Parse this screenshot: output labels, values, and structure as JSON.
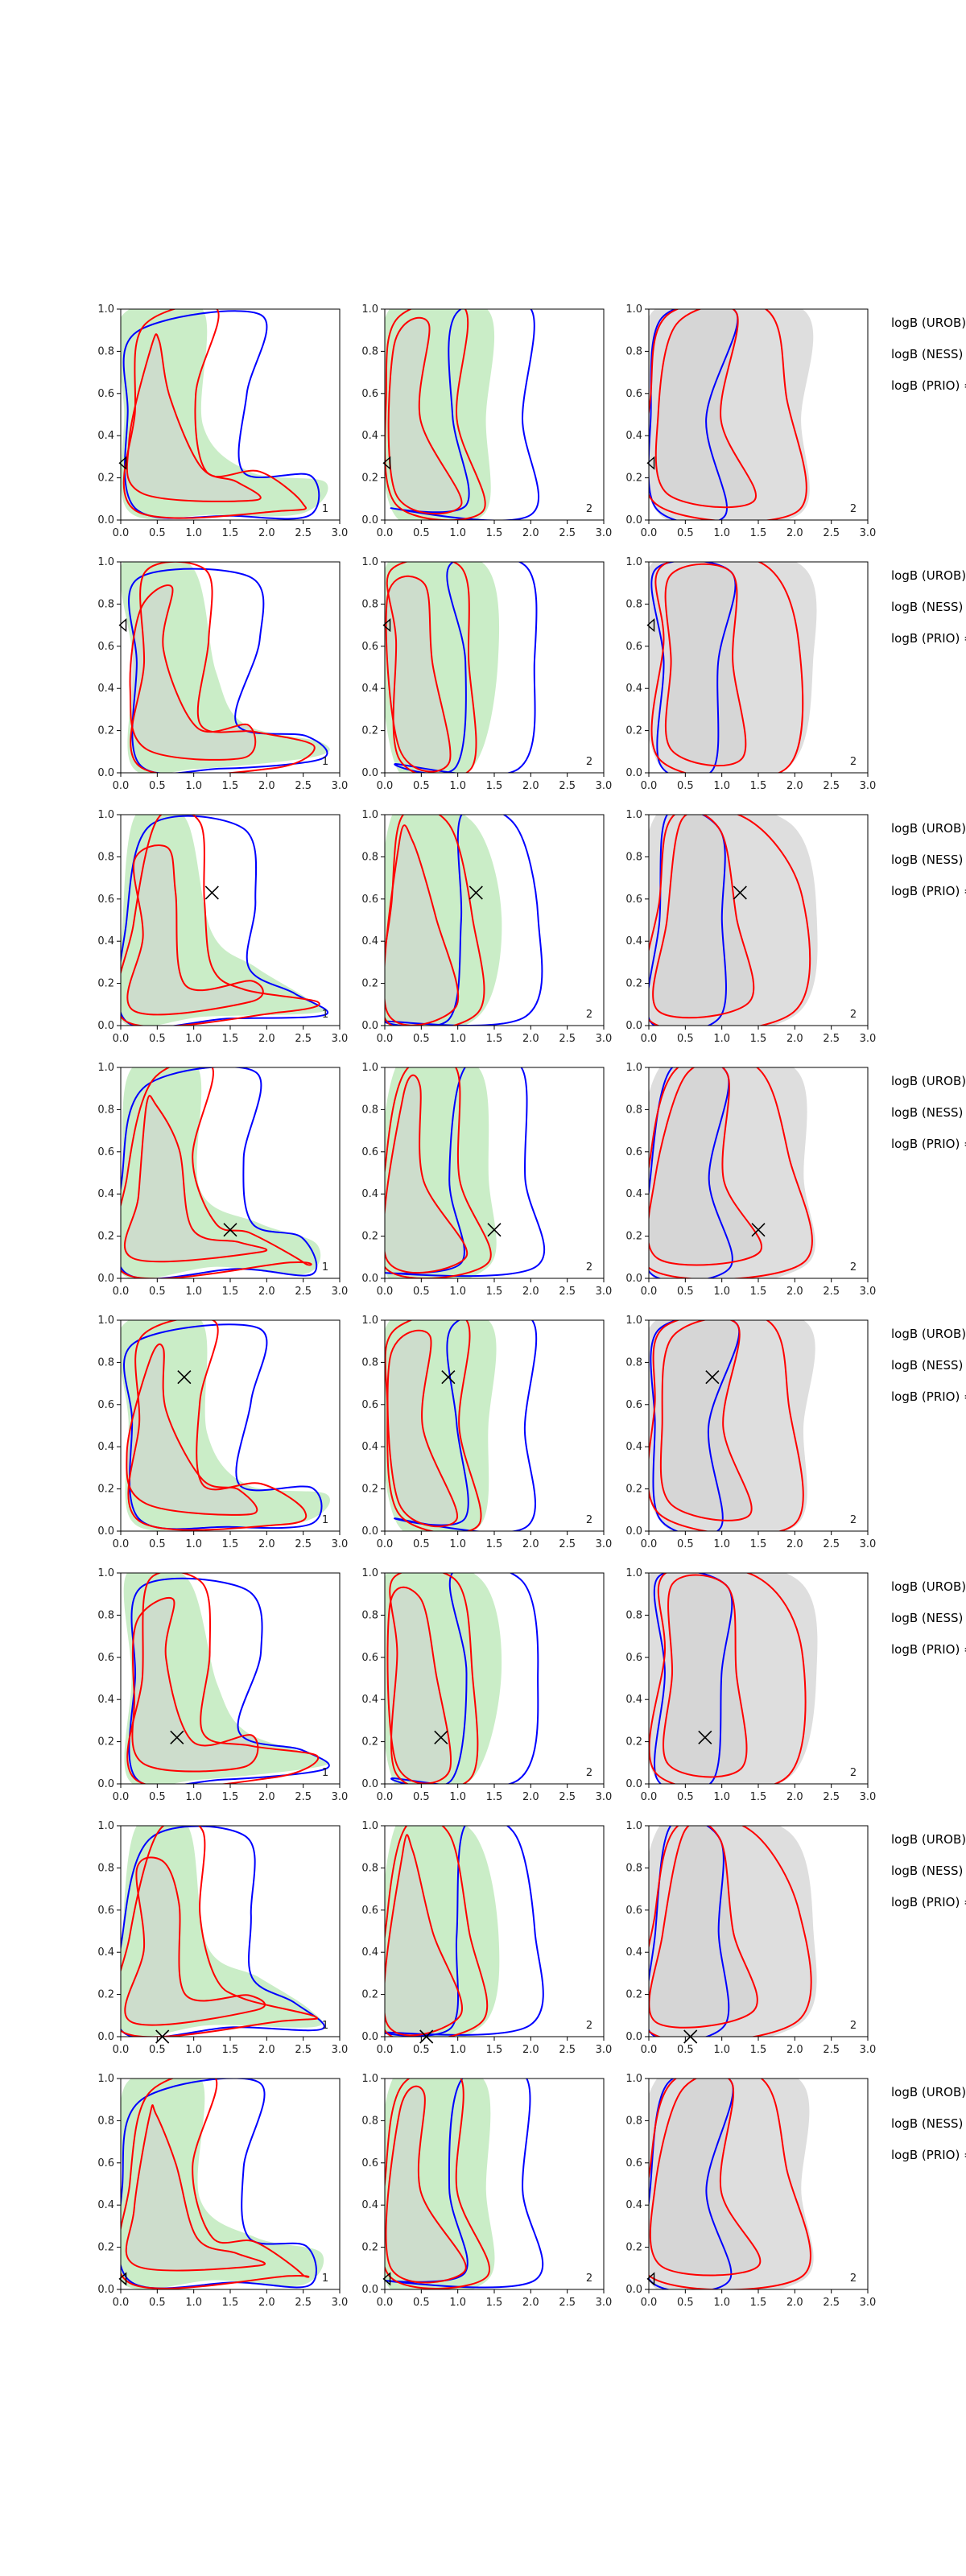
{
  "colors": {
    "green_fill": "#c7ecc4",
    "grey_fill": "#dcdcdc",
    "blue_line": "#0000ff",
    "red_line": "#ff0000",
    "marker": "#000000"
  },
  "chart_data": {
    "type": "contour",
    "layout": "grid of 8 rows x 3 columns",
    "xlim": [
      0.0,
      3.0
    ],
    "ylim": [
      0.0,
      1.0
    ],
    "xticks": [
      "0.0",
      "0.5",
      "1.0",
      "1.5",
      "2.0",
      "2.5",
      "3.0"
    ],
    "yticks": [
      "0.0",
      "0.2",
      "0.4",
      "0.6",
      "0.8",
      "1.0"
    ],
    "side_labels": [
      "logB (UROB) =",
      "logB (NESS) =",
      "logB (PRIO) ="
    ],
    "column_numbers": [
      "1",
      "2",
      "2"
    ],
    "column_fill": [
      "green",
      "green",
      "grey"
    ],
    "rows": [
      {
        "marker": [
          0.05,
          0.27
        ],
        "marker_style": "triangle"
      },
      {
        "marker": [
          0.05,
          0.7
        ],
        "marker_style": "triangle"
      },
      {
        "marker": [
          1.25,
          0.63
        ],
        "marker_style": "x"
      },
      {
        "marker": [
          1.5,
          0.23
        ],
        "marker_style": "x"
      },
      {
        "marker": [
          0.87,
          0.73
        ],
        "marker_style": "x"
      },
      {
        "marker": [
          0.77,
          0.22
        ],
        "marker_style": "x"
      },
      {
        "marker": [
          0.57,
          0.0
        ],
        "marker_style": "x"
      },
      {
        "marker": [
          0.05,
          0.05
        ],
        "marker_style": "triangle"
      }
    ]
  }
}
